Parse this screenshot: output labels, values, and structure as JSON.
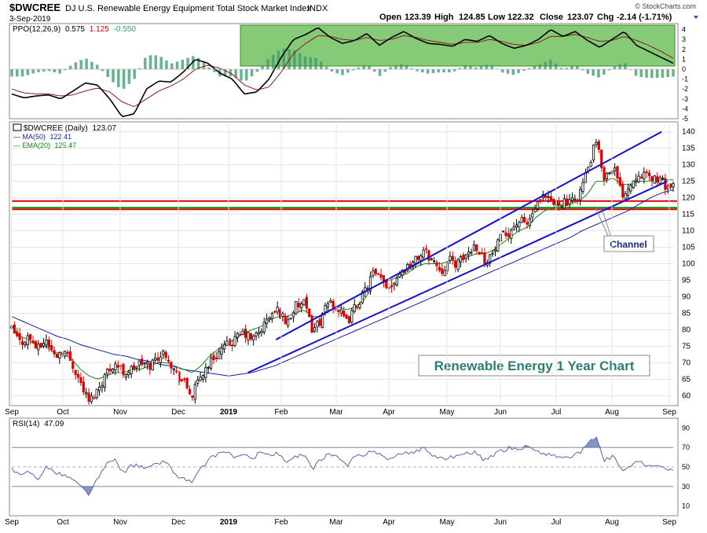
{
  "header": {
    "symbol": "$DWCREE",
    "name": "DJ U.S. Renewable Energy Equipment Total Stock Market Index",
    "exchange": "INDX",
    "date": "3-Sep-2019",
    "credit": "© StockCharts.com",
    "ohlc": {
      "open_label": "Open",
      "open": "123.39",
      "high_label": "High",
      "high": "124.85",
      "low_label": "Low",
      "low": "122.32",
      "close_label": "Close",
      "close": "123.07",
      "chg_label": "Chg",
      "chg": "-2.14 (-1.71%)"
    }
  },
  "colors": {
    "up": "#000000",
    "down": "#dd0000",
    "ma50": "#1a1aa0",
    "ema20": "#118811",
    "channel": "#1111cc",
    "support_red": "#dd0000",
    "support_green": "#119911",
    "ppo_line": "#000000",
    "ppo_signal": "#8b1a1a",
    "hist": "#3a9a6a",
    "highlight": "#5cb84a",
    "rsi": "#5566aa",
    "title_text": "#2e7d72"
  },
  "chart_data": [
    {
      "type": "line",
      "panel": "ppo",
      "legend": {
        "label": "PPO(12,26,9)",
        "ppo": "0.575",
        "signal": "1.125",
        "hist": "-0.550"
      },
      "ylim": [
        -5,
        4.6
      ],
      "y_ticks": [
        "4",
        "3",
        "2",
        "1",
        "0",
        "-1",
        "-2",
        "-3",
        "-4",
        "-5"
      ],
      "series": [
        {
          "name": "PPO",
          "values": [
            -2.5,
            -2.9,
            -2.7,
            -2.6,
            -3.0,
            -2.2,
            -1.4,
            -1.6,
            -3.0,
            -4.8,
            -4.5,
            -2.0,
            -1.2,
            -1.3,
            -0.3,
            1.0,
            0.6,
            -0.4,
            -1.0,
            -2.5,
            -2.3,
            -1.0,
            1.2,
            3.0,
            3.5,
            4.2,
            3.2,
            2.6,
            2.9,
            3.6,
            2.4,
            3.2,
            3.8,
            3.1,
            2.6,
            2.5,
            2.3,
            3.0,
            2.8,
            3.4,
            2.6,
            2.1,
            2.4,
            3.0,
            4.0,
            3.3,
            3.8,
            2.9,
            2.2,
            3.0,
            3.8,
            2.4,
            1.8,
            1.2,
            0.6
          ]
        },
        {
          "name": "Signal",
          "values": [
            -2.0,
            -2.4,
            -2.5,
            -2.5,
            -2.7,
            -2.6,
            -2.2,
            -1.9,
            -2.3,
            -3.3,
            -3.8,
            -3.0,
            -2.2,
            -1.7,
            -1.0,
            0.0,
            0.4,
            0.1,
            -0.5,
            -1.6,
            -2.1,
            -1.8,
            -0.3,
            1.6,
            2.6,
            3.4,
            3.3,
            3.0,
            2.9,
            3.2,
            2.9,
            3.0,
            3.4,
            3.2,
            2.9,
            2.7,
            2.5,
            2.7,
            2.7,
            3.0,
            2.8,
            2.5,
            2.4,
            2.7,
            3.3,
            3.3,
            3.5,
            3.2,
            2.8,
            2.9,
            3.3,
            2.9,
            2.4,
            1.8,
            1.1
          ]
        }
      ]
    },
    {
      "type": "candlestick",
      "panel": "price",
      "legend": [
        {
          "label": "$DWCREE (Daily)",
          "value": "123.07"
        },
        {
          "label": "MA(50)",
          "value": "122.41"
        },
        {
          "label": "EMA(20)",
          "value": "125.47"
        }
      ],
      "ylim": [
        57,
        143
      ],
      "y_ticks": [
        "140",
        "135",
        "130",
        "125",
        "120",
        "115",
        "110",
        "105",
        "100",
        "95",
        "90",
        "85",
        "80",
        "75",
        "70",
        "65",
        "60"
      ],
      "x_ticks": [
        "Sep",
        "Oct",
        "Nov",
        "Dec",
        "2019",
        "Feb",
        "Mar",
        "Apr",
        "May",
        "Jun",
        "Jul",
        "Aug",
        "Sep"
      ],
      "close_anchors": [
        80,
        76,
        78,
        74,
        77,
        72,
        74,
        70,
        64,
        58,
        62,
        67,
        70,
        67,
        68,
        70,
        69,
        72,
        73,
        67,
        64,
        60,
        66,
        70,
        73,
        75,
        77,
        79,
        77,
        80,
        84,
        86,
        82,
        87,
        88,
        80,
        83,
        89,
        86,
        82,
        87,
        91,
        97,
        95,
        93,
        97,
        99,
        101,
        104,
        101,
        98,
        101,
        100,
        103,
        106,
        101,
        103,
        108,
        110,
        113,
        112,
        117,
        120,
        118,
        119,
        118,
        121,
        128,
        137,
        126,
        130,
        121,
        124,
        128,
        126,
        126,
        124,
        123
      ],
      "ma50_anchors": [
        84,
        82.5,
        81,
        79.5,
        78,
        77,
        75.5,
        74.5,
        73.5,
        72.5,
        72,
        71,
        70.5,
        69.5,
        69,
        68,
        67.5,
        67,
        66.5,
        66,
        66.5,
        67,
        68,
        69,
        70.5,
        72,
        73.5,
        75,
        76.5,
        78,
        79.5,
        81,
        82.5,
        84,
        85.5,
        87,
        88.5,
        90,
        91.5,
        93,
        94.5,
        96,
        97.5,
        99,
        100.5,
        102,
        103.5,
        105,
        106.5,
        108,
        110,
        111.5,
        113,
        114.5,
        116,
        118,
        120,
        121.5,
        122.4
      ],
      "ema20_anchors": [
        81,
        78,
        77,
        75,
        75,
        73,
        73,
        71,
        68,
        66,
        65,
        66,
        67,
        67,
        68,
        68,
        69,
        70,
        70,
        69,
        68,
        67,
        69,
        72,
        74,
        76,
        77,
        79,
        80,
        81,
        83,
        84,
        84,
        85,
        86,
        84,
        84,
        86,
        87,
        86,
        87,
        89,
        93,
        94,
        95,
        96,
        97,
        99,
        100,
        100,
        100,
        101,
        101,
        102,
        103,
        103,
        104,
        106,
        108,
        110,
        111,
        114,
        116,
        117,
        118,
        118,
        119,
        121,
        125,
        125,
        126,
        124,
        124,
        125,
        125,
        125.5,
        125.4,
        125.47
      ],
      "channel_upper": {
        "from_month": "Jan-28",
        "from_value": 77,
        "to_month": "Aug-27",
        "to_value": 140
      },
      "channel_lower": {
        "from_month": "Jan-12",
        "from_value": 67,
        "to_month": "Aug-30",
        "to_value": 125
      },
      "support_levels": [
        {
          "value": 119,
          "color": "red"
        },
        {
          "value": 116.5,
          "color": "red"
        },
        {
          "value": 117,
          "color": "green"
        }
      ],
      "callout": "Channel",
      "chart_title": "Renewable Energy 1 Year Chart"
    },
    {
      "type": "line",
      "panel": "rsi",
      "legend": {
        "label": "RSI(14)",
        "value": "47.09"
      },
      "ylim": [
        0,
        100
      ],
      "y_ticks": [
        "90",
        "70",
        "50",
        "30",
        "10"
      ],
      "reference_levels": [
        70,
        50,
        30
      ],
      "series": [
        {
          "name": "RSI",
          "values": [
            48,
            40,
            46,
            38,
            50,
            44,
            42,
            38,
            30,
            22,
            38,
            52,
            58,
            44,
            52,
            50,
            49,
            54,
            56,
            42,
            38,
            34,
            48,
            58,
            64,
            66,
            60,
            62,
            58,
            66,
            62,
            64,
            54,
            60,
            62,
            48,
            58,
            64,
            60,
            50,
            62,
            60,
            68,
            62,
            58,
            62,
            64,
            66,
            70,
            62,
            58,
            60,
            62,
            64,
            66,
            56,
            62,
            66,
            70,
            68,
            72,
            66,
            64,
            62,
            60,
            60,
            64,
            72,
            82,
            56,
            62,
            46,
            52,
            56,
            50,
            52,
            48,
            47
          ]
        }
      ]
    }
  ]
}
